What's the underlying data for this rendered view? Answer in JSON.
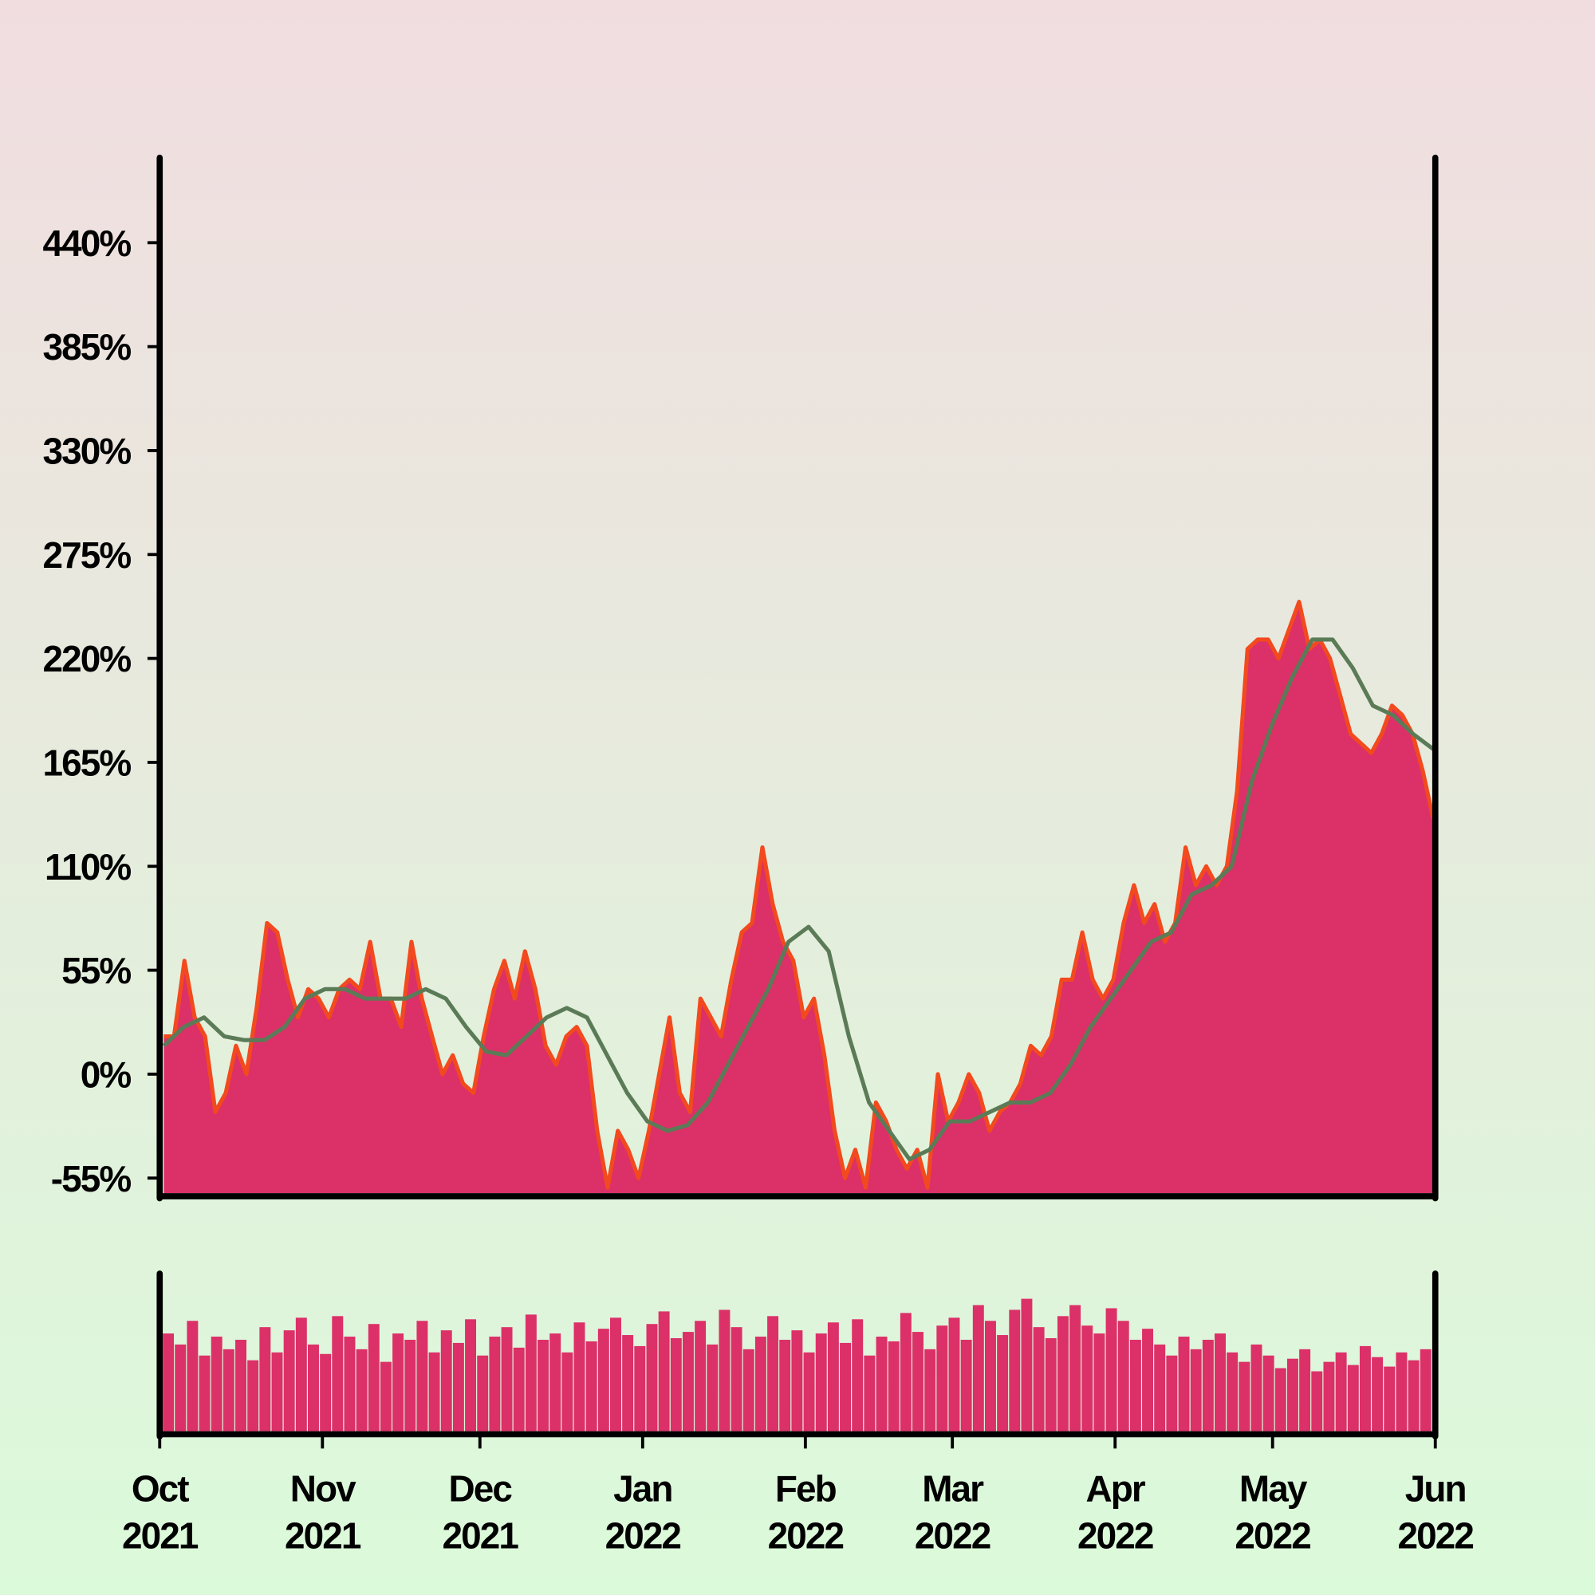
{
  "chart_data": [
    {
      "type": "area",
      "xlim": [
        "2021-10-01",
        "2022-06-01"
      ],
      "xticks": [
        {
          "value": "2021-10-01",
          "label": [
            "Oct",
            "2021"
          ]
        },
        {
          "value": "2021-11-01",
          "label": [
            "Nov",
            "2021"
          ]
        },
        {
          "value": "2021-12-01",
          "label": [
            "Dec",
            "2021"
          ]
        },
        {
          "value": "2022-01-01",
          "label": [
            "Jan",
            "2022"
          ]
        },
        {
          "value": "2022-02-01",
          "label": [
            "Feb",
            "2022"
          ]
        },
        {
          "value": "2022-03-01",
          "label": [
            "Mar",
            "2022"
          ]
        },
        {
          "value": "2022-04-01",
          "label": [
            "Apr",
            "2022"
          ]
        },
        {
          "value": "2022-05-01",
          "label": [
            "May",
            "2022"
          ]
        },
        {
          "value": "2022-06-01",
          "label": [
            "Jun",
            "2022"
          ]
        }
      ],
      "ylim": [
        -63,
        485
      ],
      "yticks": [
        {
          "value": -55,
          "label": "-55%"
        },
        {
          "value": 0,
          "label": "0%"
        },
        {
          "value": 55,
          "label": "55%"
        },
        {
          "value": 110,
          "label": "110%"
        },
        {
          "value": 165,
          "label": "165%"
        },
        {
          "value": 220,
          "label": "220%"
        },
        {
          "value": 275,
          "label": "275%"
        },
        {
          "value": 330,
          "label": "330%"
        },
        {
          "value": 385,
          "label": "385%"
        },
        {
          "value": 440,
          "label": "440%"
        }
      ],
      "series": [
        {
          "kind": "area",
          "color": "#dc3068",
          "line_color": "#f24a1e",
          "values": [
            20,
            20,
            60,
            30,
            20,
            -20,
            -10,
            15,
            0,
            35,
            80,
            75,
            50,
            30,
            45,
            40,
            30,
            45,
            50,
            45,
            70,
            40,
            40,
            25,
            70,
            40,
            20,
            0,
            10,
            -5,
            -10,
            20,
            45,
            60,
            40,
            65,
            45,
            15,
            5,
            20,
            25,
            15,
            -30,
            -60,
            -30,
            -40,
            -55,
            -30,
            0,
            30,
            -10,
            -20,
            40,
            30,
            20,
            50,
            75,
            80,
            120,
            90,
            70,
            60,
            30,
            40,
            10,
            -30,
            -55,
            -40,
            -60,
            -15,
            -25,
            -40,
            -50,
            -40,
            -60,
            0,
            -25,
            -15,
            0,
            -10,
            -30,
            -20,
            -15,
            -5,
            15,
            10,
            20,
            50,
            50,
            75,
            50,
            40,
            50,
            80,
            100,
            80,
            90,
            70,
            80,
            120,
            100,
            110,
            100,
            110,
            150,
            225,
            230,
            230,
            220,
            235,
            250,
            225,
            230,
            220,
            200,
            180,
            175,
            170,
            180,
            195,
            190,
            180,
            160,
            135
          ]
        },
        {
          "kind": "line",
          "color": "#5b7b57",
          "values": [
            15,
            25,
            30,
            20,
            18,
            18,
            25,
            40,
            45,
            45,
            40,
            40,
            40,
            45,
            40,
            25,
            12,
            10,
            20,
            30,
            35,
            30,
            10,
            -10,
            -25,
            -30,
            -27,
            -15,
            5,
            25,
            45,
            70,
            78,
            65,
            20,
            -15,
            -30,
            -45,
            -40,
            -25,
            -25,
            -20,
            -15,
            -15,
            -10,
            5,
            25,
            40,
            55,
            70,
            75,
            95,
            100,
            110,
            155,
            185,
            210,
            230,
            230,
            215,
            195,
            190,
            180,
            172
          ]
        }
      ]
    },
    {
      "type": "bar",
      "color": "#dc3068",
      "ylim": [
        0,
        100
      ],
      "values": [
        62,
        55,
        70,
        48,
        60,
        52,
        58,
        45,
        66,
        50,
        64,
        72,
        55,
        49,
        73,
        60,
        52,
        68,
        44,
        62,
        58,
        70,
        50,
        64,
        56,
        71,
        48,
        60,
        66,
        53,
        74,
        58,
        62,
        50,
        69,
        57,
        65,
        72,
        61,
        54,
        68,
        76,
        59,
        63,
        70,
        55,
        77,
        66,
        52,
        60,
        73,
        58,
        64,
        50,
        62,
        69,
        56,
        71,
        48,
        60,
        57,
        75,
        63,
        52,
        67,
        72,
        58,
        80,
        70,
        61,
        77,
        84,
        66,
        59,
        73,
        80,
        67,
        62,
        78,
        70,
        58,
        65,
        55,
        48,
        60,
        52,
        58,
        62,
        50,
        44,
        55,
        48,
        40,
        46,
        52,
        38,
        44,
        50,
        42,
        54,
        47,
        41,
        50,
        45,
        52
      ]
    }
  ]
}
